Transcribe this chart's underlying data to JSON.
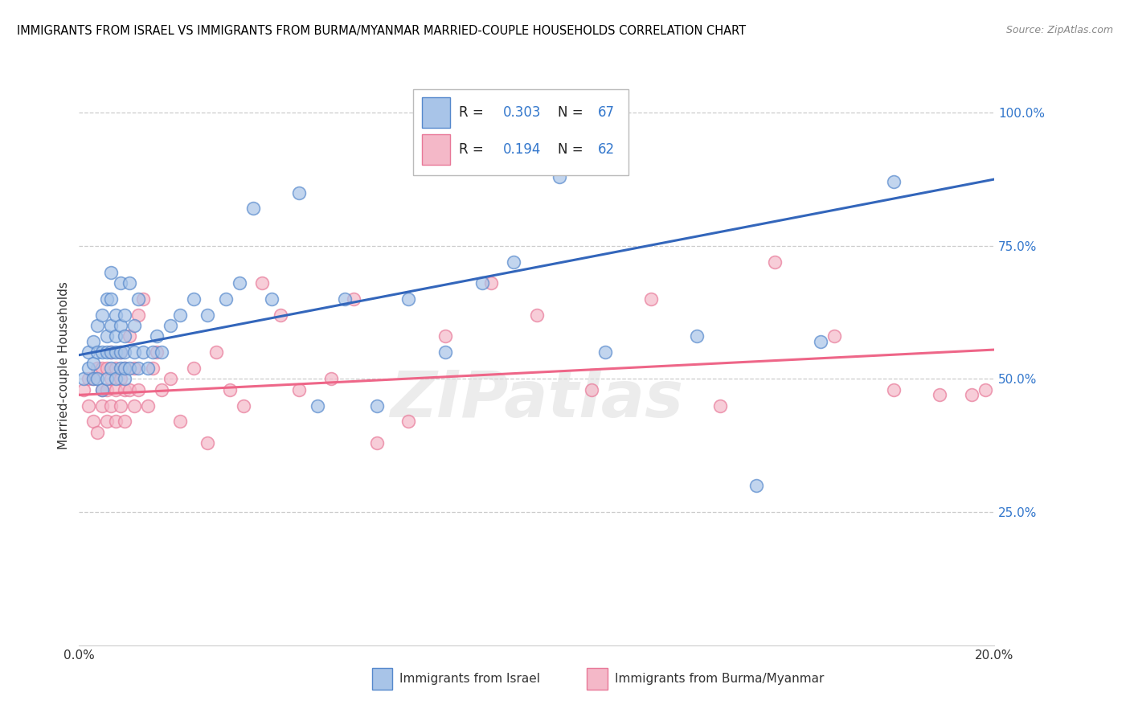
{
  "title": "IMMIGRANTS FROM ISRAEL VS IMMIGRANTS FROM BURMA/MYANMAR MARRIED-COUPLE HOUSEHOLDS CORRELATION CHART",
  "source": "Source: ZipAtlas.com",
  "ylabel": "Married-couple Households",
  "xmin": 0.0,
  "xmax": 0.2,
  "ymin": 0.0,
  "ymax": 1.05,
  "x_ticks": [
    0.0,
    0.05,
    0.1,
    0.15,
    0.2
  ],
  "x_tick_labels": [
    "0.0%",
    "",
    "",
    "",
    "20.0%"
  ],
  "y_ticks_right": [
    0.25,
    0.5,
    0.75,
    1.0
  ],
  "y_tick_labels_right": [
    "25.0%",
    "50.0%",
    "75.0%",
    "100.0%"
  ],
  "legend_R_israel": "0.303",
  "legend_N_israel": "67",
  "legend_R_burma": "0.194",
  "legend_N_burma": "62",
  "color_israel_fill": "#A8C4E8",
  "color_israel_edge": "#5588CC",
  "color_burma_fill": "#F4B8C8",
  "color_burma_edge": "#E87898",
  "color_israel_line": "#3366BB",
  "color_burma_line": "#EE6688",
  "israel_x": [
    0.001,
    0.002,
    0.002,
    0.003,
    0.003,
    0.003,
    0.004,
    0.004,
    0.004,
    0.005,
    0.005,
    0.005,
    0.006,
    0.006,
    0.006,
    0.006,
    0.007,
    0.007,
    0.007,
    0.007,
    0.007,
    0.008,
    0.008,
    0.008,
    0.008,
    0.009,
    0.009,
    0.009,
    0.009,
    0.01,
    0.01,
    0.01,
    0.01,
    0.01,
    0.011,
    0.011,
    0.012,
    0.012,
    0.013,
    0.013,
    0.014,
    0.015,
    0.016,
    0.017,
    0.018,
    0.02,
    0.022,
    0.025,
    0.028,
    0.032,
    0.035,
    0.038,
    0.042,
    0.048,
    0.052,
    0.058,
    0.065,
    0.072,
    0.08,
    0.088,
    0.095,
    0.105,
    0.115,
    0.135,
    0.148,
    0.162,
    0.178
  ],
  "israel_y": [
    0.5,
    0.52,
    0.55,
    0.5,
    0.53,
    0.57,
    0.5,
    0.55,
    0.6,
    0.48,
    0.55,
    0.62,
    0.5,
    0.55,
    0.58,
    0.65,
    0.52,
    0.55,
    0.6,
    0.65,
    0.7,
    0.5,
    0.55,
    0.58,
    0.62,
    0.52,
    0.55,
    0.6,
    0.68,
    0.5,
    0.52,
    0.55,
    0.58,
    0.62,
    0.52,
    0.68,
    0.55,
    0.6,
    0.52,
    0.65,
    0.55,
    0.52,
    0.55,
    0.58,
    0.55,
    0.6,
    0.62,
    0.65,
    0.62,
    0.65,
    0.68,
    0.82,
    0.65,
    0.85,
    0.45,
    0.65,
    0.45,
    0.65,
    0.55,
    0.68,
    0.72,
    0.88,
    0.55,
    0.58,
    0.3,
    0.57,
    0.87
  ],
  "burma_x": [
    0.001,
    0.002,
    0.002,
    0.003,
    0.003,
    0.004,
    0.004,
    0.005,
    0.005,
    0.005,
    0.006,
    0.006,
    0.006,
    0.007,
    0.007,
    0.007,
    0.008,
    0.008,
    0.008,
    0.009,
    0.009,
    0.009,
    0.01,
    0.01,
    0.01,
    0.011,
    0.011,
    0.012,
    0.012,
    0.013,
    0.013,
    0.014,
    0.015,
    0.016,
    0.017,
    0.018,
    0.02,
    0.022,
    0.025,
    0.028,
    0.03,
    0.033,
    0.036,
    0.04,
    0.044,
    0.048,
    0.055,
    0.06,
    0.065,
    0.072,
    0.08,
    0.09,
    0.1,
    0.112,
    0.125,
    0.14,
    0.152,
    0.165,
    0.178,
    0.188,
    0.195,
    0.198
  ],
  "burma_y": [
    0.48,
    0.45,
    0.5,
    0.42,
    0.5,
    0.4,
    0.52,
    0.45,
    0.48,
    0.52,
    0.42,
    0.48,
    0.52,
    0.45,
    0.5,
    0.55,
    0.42,
    0.48,
    0.52,
    0.45,
    0.5,
    0.55,
    0.42,
    0.48,
    0.52,
    0.48,
    0.58,
    0.45,
    0.52,
    0.48,
    0.62,
    0.65,
    0.45,
    0.52,
    0.55,
    0.48,
    0.5,
    0.42,
    0.52,
    0.38,
    0.55,
    0.48,
    0.45,
    0.68,
    0.62,
    0.48,
    0.5,
    0.65,
    0.38,
    0.42,
    0.58,
    0.68,
    0.62,
    0.48,
    0.65,
    0.45,
    0.72,
    0.58,
    0.48,
    0.47,
    0.47,
    0.48
  ],
  "israel_line_x0": 0.0,
  "israel_line_x1": 0.2,
  "israel_line_y0": 0.545,
  "israel_line_y1": 0.875,
  "burma_line_x0": 0.0,
  "burma_line_x1": 0.2,
  "burma_line_y0": 0.47,
  "burma_line_y1": 0.555
}
